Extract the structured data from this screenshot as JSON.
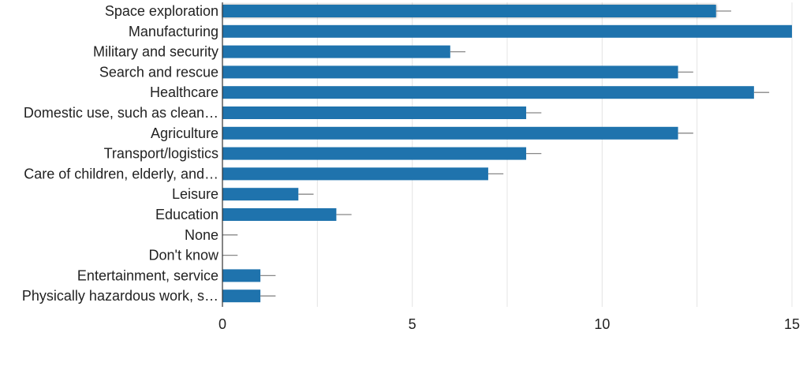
{
  "chart_data": {
    "type": "bar",
    "orientation": "horizontal",
    "categories": [
      "Space exploration",
      "Manufacturing",
      "Military and security",
      "Search and rescue",
      "Healthcare",
      "Domestic use, such as clean…",
      "Agriculture",
      "Transport/logistics",
      "Care of children, elderly, and…",
      "Leisure",
      "Education",
      "None",
      "Don't know",
      "Entertainment, service",
      "Physically hazardous work, s…"
    ],
    "values": [
      13,
      15,
      6,
      12,
      14,
      8,
      12,
      8,
      7,
      2,
      3,
      0,
      0,
      1,
      1
    ],
    "error_plus": [
      0.4,
      0,
      0.4,
      0.4,
      0.4,
      0.4,
      0.4,
      0.4,
      0.4,
      0.4,
      0.4,
      0.4,
      0.4,
      0.4,
      0.4
    ],
    "xlim": [
      0,
      15
    ],
    "xticks": [
      0,
      5,
      10,
      15
    ],
    "gridlines": [
      2.5,
      5,
      7.5,
      10,
      12.5,
      15
    ],
    "title": "",
    "xlabel": "",
    "ylabel": "",
    "highlighted_index": 0,
    "colors": {
      "bar": "#1f73ad",
      "error_bar": "#888888",
      "grid": "#e4e4e4",
      "axis": "#333333"
    }
  }
}
